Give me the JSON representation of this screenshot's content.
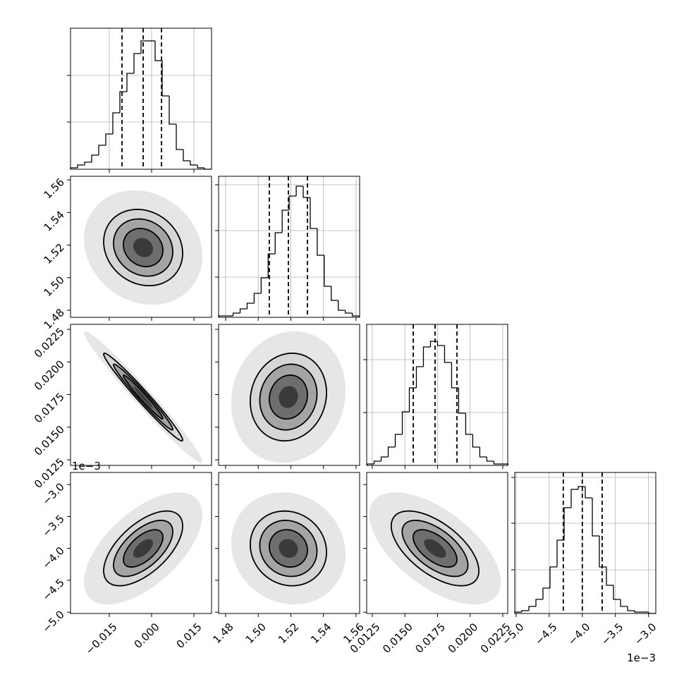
{
  "chart_data": {
    "type": "corner",
    "color": "#000000",
    "contour_levels": [
      0.5,
      1,
      1.5,
      2
    ],
    "hist_ylim": [
      0,
      1
    ],
    "variables": [
      {
        "xlim": [
          -0.02875,
          0.02125
        ],
        "ticks": [
          {
            "value": -0.015,
            "label": "−0.015"
          },
          {
            "value": 0,
            "label": "0.000"
          },
          0.015
        ],
        "bins": [
          -0.02875,
          -0.02625,
          -0.02375,
          -0.02125,
          -0.01875,
          -0.01625,
          -0.01375,
          -0.01125,
          -0.00875,
          -0.00625,
          -0.00375,
          -0.00125,
          0.00125,
          0.00375,
          0.00625,
          0.00875,
          0.01125,
          0.01375,
          0.01625,
          0.01875,
          0.02125
        ],
        "counts": [
          0.01,
          0.03,
          0.05,
          0.1,
          0.17,
          0.25,
          0.4,
          0.55,
          0.68,
          0.82,
          0.91,
          0.91,
          0.77,
          0.52,
          0.32,
          0.14,
          0.06,
          0.03,
          0.01,
          0
        ],
        "hist_yticks": [
          0.335,
          0.665
        ],
        "quantiles": [
          -0.0105,
          -0.003,
          0.0035
        ],
        "mean": -0.003,
        "sd": 0.007
      },
      {
        "xlim": [
          1.4757,
          1.5622
        ],
        "ylim": [
          1.4757,
          1.5622
        ],
        "ticks": [
          1.48,
          {
            "value": 1.5,
            "label": "1.50"
          },
          1.52,
          1.54,
          1.56
        ],
        "bins": [
          1.476,
          1.4803,
          1.4846,
          1.4889,
          1.4932,
          1.4975,
          1.5018,
          1.5061,
          1.5104,
          1.5147,
          1.519,
          1.5233,
          1.5276,
          1.5319,
          1.5362,
          1.5405,
          1.5448,
          1.5491,
          1.5534,
          1.5577,
          1.562
        ],
        "counts": [
          0.01,
          0.01,
          0.03,
          0.06,
          0.1,
          0.17,
          0.28,
          0.45,
          0.6,
          0.76,
          0.86,
          0.93,
          0.85,
          0.63,
          0.44,
          0.22,
          0.12,
          0.05,
          0.03,
          0.01
        ],
        "hist_yticks": [
          0.285,
          0.615,
          0.94
        ],
        "quantiles": [
          1.5068,
          1.5185,
          1.5302
        ],
        "mean": 1.5185,
        "sd": 0.0117
      },
      {
        "xlim": [
          0.01207,
          0.02288
        ],
        "ylim": [
          0.01207,
          0.02288
        ],
        "ticks": [
          0.0125,
          {
            "value": 0.015,
            "label": "0.0150"
          },
          0.0175,
          {
            "value": 0.02,
            "label": "0.0200"
          },
          0.0225
        ],
        "bins": [
          0.0121,
          0.01264,
          0.01318,
          0.01372,
          0.01426,
          0.0148,
          0.01534,
          0.01588,
          0.01642,
          0.01696,
          0.0175,
          0.01804,
          0.01858,
          0.01912,
          0.01966,
          0.0202,
          0.02074,
          0.02128,
          0.02182,
          0.02236,
          0.0229
        ],
        "counts": [
          0.01,
          0.03,
          0.06,
          0.13,
          0.22,
          0.38,
          0.55,
          0.7,
          0.84,
          0.88,
          0.85,
          0.73,
          0.55,
          0.37,
          0.22,
          0.13,
          0.06,
          0.03,
          0.01,
          0.01
        ],
        "hist_yticks": [
          0.375,
          0.75
        ],
        "quantiles": [
          0.01564,
          0.01731,
          0.01899
        ],
        "mean": 0.01731,
        "sd": 0.00168
      },
      {
        "xlim": [
          -5.02,
          -2.89
        ],
        "ylim": [
          -5.02,
          -2.81
        ],
        "ticks": [
          {
            "value": -5,
            "label": "−5.0"
          },
          {
            "value": -4.5,
            "label": "−4.5"
          },
          {
            "value": -4,
            "label": "−4.0"
          },
          {
            "value": -3.5,
            "label": "−3.5"
          },
          {
            "value": -3,
            "label": "−3.0"
          }
        ],
        "offset_label": "1e−3",
        "bins": [
          -5.02,
          -4.9135,
          -4.807,
          -4.7005,
          -4.594,
          -4.4875,
          -4.381,
          -4.2745,
          -4.168,
          -4.0615,
          -3.955,
          -3.8485,
          -3.742,
          -3.6355,
          -3.529,
          -3.4225,
          -3.316,
          -3.2095,
          -3.103,
          -2.9965,
          -2.89
        ],
        "counts": [
          0.01,
          0.02,
          0.05,
          0.1,
          0.18,
          0.33,
          0.52,
          0.75,
          0.88,
          0.9,
          0.82,
          0.55,
          0.33,
          0.2,
          0.1,
          0.05,
          0.02,
          0.01,
          0.01,
          0
        ],
        "hist_yticks": [
          0.31,
          0.64,
          0.965
        ],
        "quantiles": [
          -4.287,
          -4.0,
          -3.7
        ],
        "mean": -4.0,
        "sd": 0.293
      }
    ],
    "correlations": [
      [
        -0.15
      ],
      [
        -0.98,
        0.1
      ],
      [
        0.6,
        -0.1,
        -0.6
      ]
    ]
  }
}
